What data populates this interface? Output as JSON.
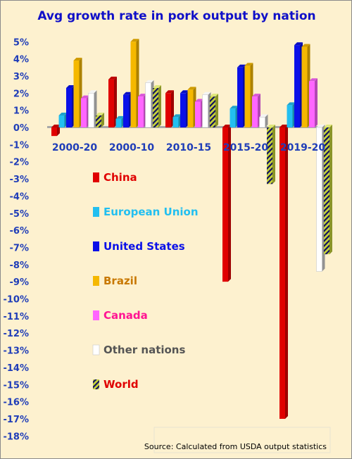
{
  "chart_data": {
    "type": "bar",
    "title": "Avg growth rate in pork output by nation",
    "categories": [
      "2000-20",
      "2000-10",
      "2010-15",
      "2015-20",
      "2019-20"
    ],
    "series": [
      {
        "name": "China",
        "color": "#e00000",
        "values": [
          -0.5,
          2.8,
          2.0,
          -9.0,
          -17.0
        ]
      },
      {
        "name": "European Union",
        "color": "#22bff0",
        "values": [
          0.7,
          0.5,
          0.6,
          1.1,
          1.3
        ]
      },
      {
        "name": "United States",
        "color": "#0a10e8",
        "values": [
          2.3,
          1.9,
          2.0,
          3.5,
          4.8
        ]
      },
      {
        "name": "Brazil",
        "color": "#f5b800",
        "values": [
          3.9,
          5.0,
          2.2,
          3.6,
          4.7
        ]
      },
      {
        "name": "Canada",
        "color": "#ff66ff",
        "values": [
          1.7,
          1.8,
          1.5,
          1.8,
          2.7
        ]
      },
      {
        "name": "Other nations",
        "color": "#ffffff",
        "values": [
          2.0,
          2.6,
          1.9,
          0.6,
          -8.4
        ]
      },
      {
        "name": "World",
        "color": "#c8d43a",
        "pattern": "stripes",
        "values": [
          0.7,
          2.3,
          1.8,
          -3.3,
          -7.4
        ]
      }
    ],
    "y_ticks": [
      "5%",
      "4%",
      "3%",
      "2%",
      "1%",
      "0%",
      "-1%",
      "-2%",
      "-3%",
      "-4%",
      "-5%",
      "-6%",
      "-7%",
      "-8%",
      "-9%",
      "-10%",
      "-11%",
      "-12%",
      "-13%",
      "-14%",
      "-15%",
      "-16%",
      "-17%",
      "-18%"
    ],
    "ylim": [
      -18,
      5
    ],
    "grid": false,
    "legend_placement": "left-center",
    "source": "Source: Calculated from USDA output statistics",
    "colors": {
      "background": "#fdf1cf",
      "title": "#1010c8",
      "tick": "#1f3db8"
    }
  },
  "legend_text_colors": [
    "#e00000",
    "#22bff0",
    "#0a10e8",
    "#c87800",
    "#ff1493",
    "#555555",
    "#e00000"
  ]
}
